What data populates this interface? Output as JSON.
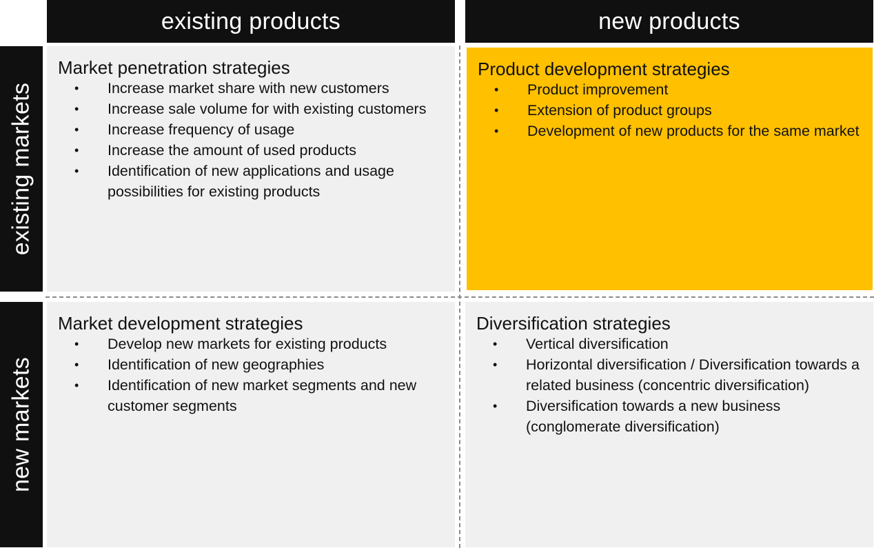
{
  "columns": {
    "existing_products": "existing products",
    "new_products": "new products"
  },
  "rows": {
    "existing_markets": "existing markets",
    "new_markets": "new markets"
  },
  "colors": {
    "header_bg": "#101010",
    "quadrant_bg": "#f0f0f0",
    "highlight": "#ffc000"
  },
  "quadrants": {
    "market_penetration": {
      "title": "Market penetration strategies",
      "items": [
        "Increase market share with new customers",
        "Increase sale volume for with existing customers",
        "Increase frequency of usage",
        "Increase the amount of used products",
        "Identification of new applications and usage possibilities for existing products"
      ]
    },
    "product_development": {
      "title": "Product development strategies",
      "items": [
        "Product improvement",
        "Extension of product groups",
        "Development of new products for the same market"
      ]
    },
    "market_development": {
      "title": "Market development strategies",
      "items": [
        "Develop new markets for existing products",
        "Identification of new geographies",
        "Identification of new market segments and new customer segments"
      ]
    },
    "diversification": {
      "title": "Diversification strategies",
      "items": [
        "Vertical diversification",
        "Horizontal diversification / Diversification towards a related business (concentric diversification)",
        "Diversification towards a new business (conglomerate diversification)"
      ]
    }
  }
}
